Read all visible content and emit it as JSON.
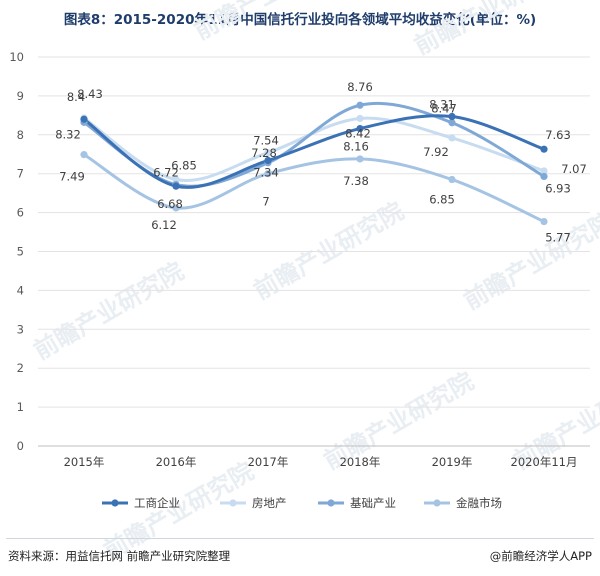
{
  "title": "图表8：2015-2020年11月中国信托行业投向各领域平均收益变化(单位：%)",
  "source": "资料来源：用益信托网 前瞻产业研究院整理",
  "brand": "@前瞻经济学人APP",
  "watermark": "前瞻产业研究院",
  "chart_data": {
    "type": "line",
    "categories": [
      "2015年",
      "2016年",
      "2017年",
      "2018年",
      "2019年",
      "2020年11月"
    ],
    "ylim": [
      0,
      10
    ],
    "yticks": [
      0,
      1,
      2,
      3,
      4,
      5,
      6,
      7,
      8,
      9,
      10
    ],
    "legend_position": "bottom",
    "series": [
      {
        "name": "工商企业",
        "color": "#3b72b5",
        "values": [
          8.4,
          6.68,
          7.34,
          8.16,
          8.47,
          7.63
        ]
      },
      {
        "name": "房地产",
        "color": "#c7dcf0",
        "values": [
          8.43,
          6.85,
          7.54,
          8.42,
          7.92,
          7.07
        ]
      },
      {
        "name": "基础产业",
        "color": "#7fa8d6",
        "values": [
          8.32,
          6.72,
          7.28,
          8.76,
          8.31,
          6.93
        ]
      },
      {
        "name": "金融市场",
        "color": "#a5c4e3",
        "values": [
          7.49,
          6.12,
          7.0,
          7.38,
          6.85,
          5.77
        ]
      }
    ],
    "data_labels": [
      [
        "8.4",
        "6.68",
        "7.34",
        "8.16",
        "8.47",
        "7.63"
      ],
      [
        "8.43",
        "6.85",
        "7.54",
        "8.42",
        "7.92",
        "7.07"
      ],
      [
        "8.32",
        "6.72",
        "7.28",
        "8.76",
        "8.31",
        "6.93"
      ],
      [
        "7.49",
        "6.12",
        "7",
        "7.38",
        "6.85",
        "5.77"
      ]
    ]
  }
}
